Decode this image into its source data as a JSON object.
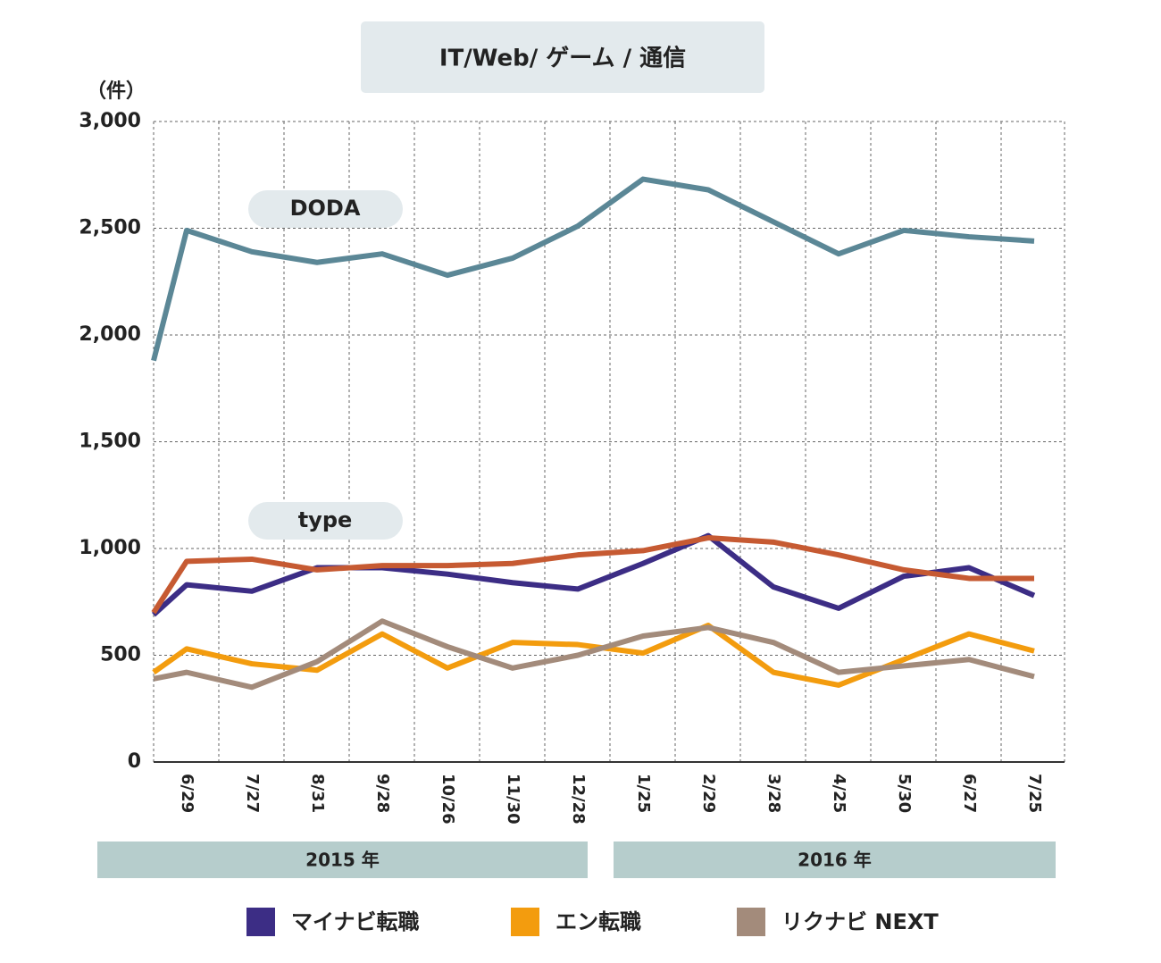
{
  "chart_data": {
    "type": "line",
    "title": "IT/Web/ ゲーム / 通信",
    "y_unit": "（件）",
    "categories": [
      null,
      "6/29",
      "7/27",
      "8/31",
      "9/28",
      "10/26",
      "11/30",
      "12/28",
      "1/25",
      "2/29",
      "3/28",
      "4/25",
      "5/30",
      "6/27",
      "7/25"
    ],
    "periods": [
      "2015 年",
      "2016 年"
    ],
    "ylim": [
      0,
      3000
    ],
    "yticks": [
      0,
      500,
      {
        "value": 1000,
        "label": "1,000"
      },
      {
        "value": 1500,
        "label": "1,500"
      },
      {
        "value": 2000,
        "label": "2,000"
      },
      {
        "value": 2500,
        "label": "2,500"
      },
      {
        "value": 3000,
        "label": "3,000"
      }
    ],
    "grid": true,
    "series": [
      {
        "name": "マイナビ転職",
        "color": "#3c2d85",
        "values": [
          690,
          830,
          800,
          910,
          910,
          880,
          840,
          810,
          930,
          1060,
          820,
          720,
          870,
          910,
          780
        ]
      },
      {
        "name": "エン転職",
        "color": "#f39c0e",
        "values": [
          420,
          530,
          460,
          430,
          600,
          440,
          560,
          550,
          510,
          640,
          420,
          360,
          480,
          600,
          520
        ]
      },
      {
        "name": "リクナビ NEXT",
        "color": "#a38b7b",
        "values": [
          390,
          420,
          350,
          470,
          660,
          540,
          440,
          500,
          590,
          630,
          560,
          420,
          450,
          480,
          400
        ]
      }
    ],
    "annotated_series": [
      {
        "name": "DODA",
        "color": "#5b8796",
        "values": [
          1880,
          2490,
          2390,
          2340,
          2380,
          2280,
          2360,
          2510,
          2730,
          2680,
          2530,
          2380,
          2490,
          2460,
          2440
        ]
      },
      {
        "name": "type",
        "color": "#c65a32",
        "values": [
          700,
          940,
          950,
          900,
          920,
          920,
          930,
          970,
          990,
          1050,
          1030,
          970,
          900,
          860,
          860
        ]
      }
    ]
  }
}
